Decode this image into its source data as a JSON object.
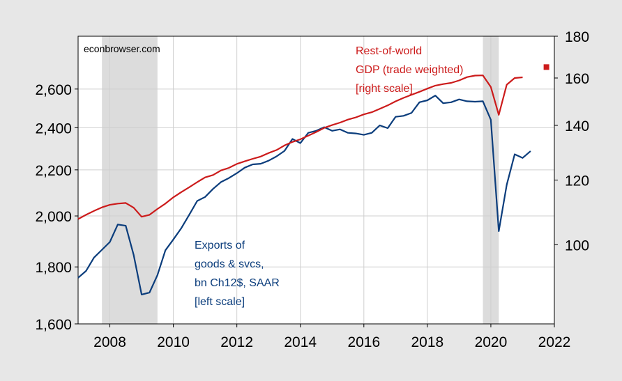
{
  "chart_data": {
    "type": "line",
    "title": "",
    "source_label": "econbrowser.com",
    "x_range": [
      2007.0,
      2022.0
    ],
    "x_ticks": [
      "2008",
      "2010",
      "2012",
      "2014",
      "2016",
      "2018",
      "2020",
      "2022"
    ],
    "left_axis": {
      "scale": "log",
      "range": [
        1600,
        2900
      ],
      "ticks": [
        "1,600",
        "1,800",
        "2,000",
        "2,200",
        "2,400",
        "2,600"
      ]
    },
    "right_axis": {
      "scale": "log",
      "range": [
        80,
        180
      ],
      "ticks": [
        "100",
        "120",
        "140",
        "160",
        "180"
      ]
    },
    "grid": true,
    "recessions": [
      [
        2007.75,
        2009.5
      ],
      [
        2019.75,
        2020.25
      ]
    ],
    "series": [
      {
        "name_lines": [
          "Exports of",
          "goods & svcs,",
          "bn Ch12$, SAAR",
          "[left scale]"
        ],
        "axis": "left",
        "color": "#0b3d7c",
        "x": [
          2007.0,
          2007.25,
          2007.5,
          2007.75,
          2008.0,
          2008.25,
          2008.5,
          2008.75,
          2009.0,
          2009.25,
          2009.5,
          2009.75,
          2010.0,
          2010.25,
          2010.5,
          2010.75,
          2011.0,
          2011.25,
          2011.5,
          2011.75,
          2012.0,
          2012.25,
          2012.5,
          2012.75,
          2013.0,
          2013.25,
          2013.5,
          2013.75,
          2014.0,
          2014.25,
          2014.5,
          2014.75,
          2015.0,
          2015.25,
          2015.5,
          2015.75,
          2016.0,
          2016.25,
          2016.5,
          2016.75,
          2017.0,
          2017.25,
          2017.5,
          2017.75,
          2018.0,
          2018.25,
          2018.5,
          2018.75,
          2019.0,
          2019.25,
          2019.5,
          2019.75,
          2020.0,
          2020.25,
          2020.5,
          2020.75,
          2021.0,
          2021.25
        ],
        "values": [
          1760,
          1785,
          1835,
          1865,
          1895,
          1965,
          1960,
          1845,
          1700,
          1707,
          1770,
          1863,
          1905,
          1950,
          2005,
          2063,
          2080,
          2115,
          2145,
          2163,
          2185,
          2210,
          2225,
          2228,
          2242,
          2262,
          2288,
          2345,
          2325,
          2375,
          2385,
          2403,
          2385,
          2392,
          2375,
          2372,
          2365,
          2375,
          2412,
          2398,
          2455,
          2460,
          2475,
          2530,
          2540,
          2565,
          2525,
          2530,
          2545,
          2535,
          2533,
          2535,
          2440,
          1938,
          2133,
          2272,
          2255,
          2287
        ]
      },
      {
        "name_lines": [
          "Rest-of-world",
          "GDP (trade weighted)",
          "[right scale]"
        ],
        "axis": "right",
        "color": "#cc1b1b",
        "x": [
          2007.0,
          2007.25,
          2007.5,
          2007.75,
          2008.0,
          2008.25,
          2008.5,
          2008.75,
          2009.0,
          2009.25,
          2009.5,
          2009.75,
          2010.0,
          2010.25,
          2010.5,
          2010.75,
          2011.0,
          2011.25,
          2011.5,
          2011.75,
          2012.0,
          2012.25,
          2012.5,
          2012.75,
          2013.0,
          2013.25,
          2013.5,
          2013.75,
          2014.0,
          2014.25,
          2014.5,
          2014.75,
          2015.0,
          2015.25,
          2015.5,
          2015.75,
          2016.0,
          2016.25,
          2016.5,
          2016.75,
          2017.0,
          2017.25,
          2017.5,
          2017.75,
          2018.0,
          2018.25,
          2018.5,
          2018.75,
          2019.0,
          2019.25,
          2019.5,
          2019.75,
          2020.0,
          2020.25,
          2020.5,
          2020.75,
          2021.0,
          2021.25
        ],
        "values": [
          107.5,
          108.8,
          110.0,
          111.1,
          111.9,
          112.3,
          112.5,
          111.0,
          108.2,
          108.8,
          110.6,
          112.3,
          114.3,
          116.0,
          117.6,
          119.3,
          120.9,
          121.7,
          123.3,
          124.2,
          125.6,
          126.5,
          127.4,
          128.2,
          129.5,
          130.6,
          132.3,
          133.6,
          134.6,
          136.0,
          137.4,
          139.0,
          140.1,
          141.1,
          142.3,
          143.2,
          144.4,
          145.3,
          146.7,
          148.1,
          149.8,
          151.3,
          152.6,
          153.9,
          155.3,
          156.6,
          157.3,
          157.8,
          158.9,
          160.4,
          161.1,
          161.2,
          156.0,
          144.2,
          157.0,
          160.0,
          160.3,
          null
        ],
        "forecast_point": {
          "x": 2021.75,
          "value": 165.0
        }
      }
    ]
  }
}
